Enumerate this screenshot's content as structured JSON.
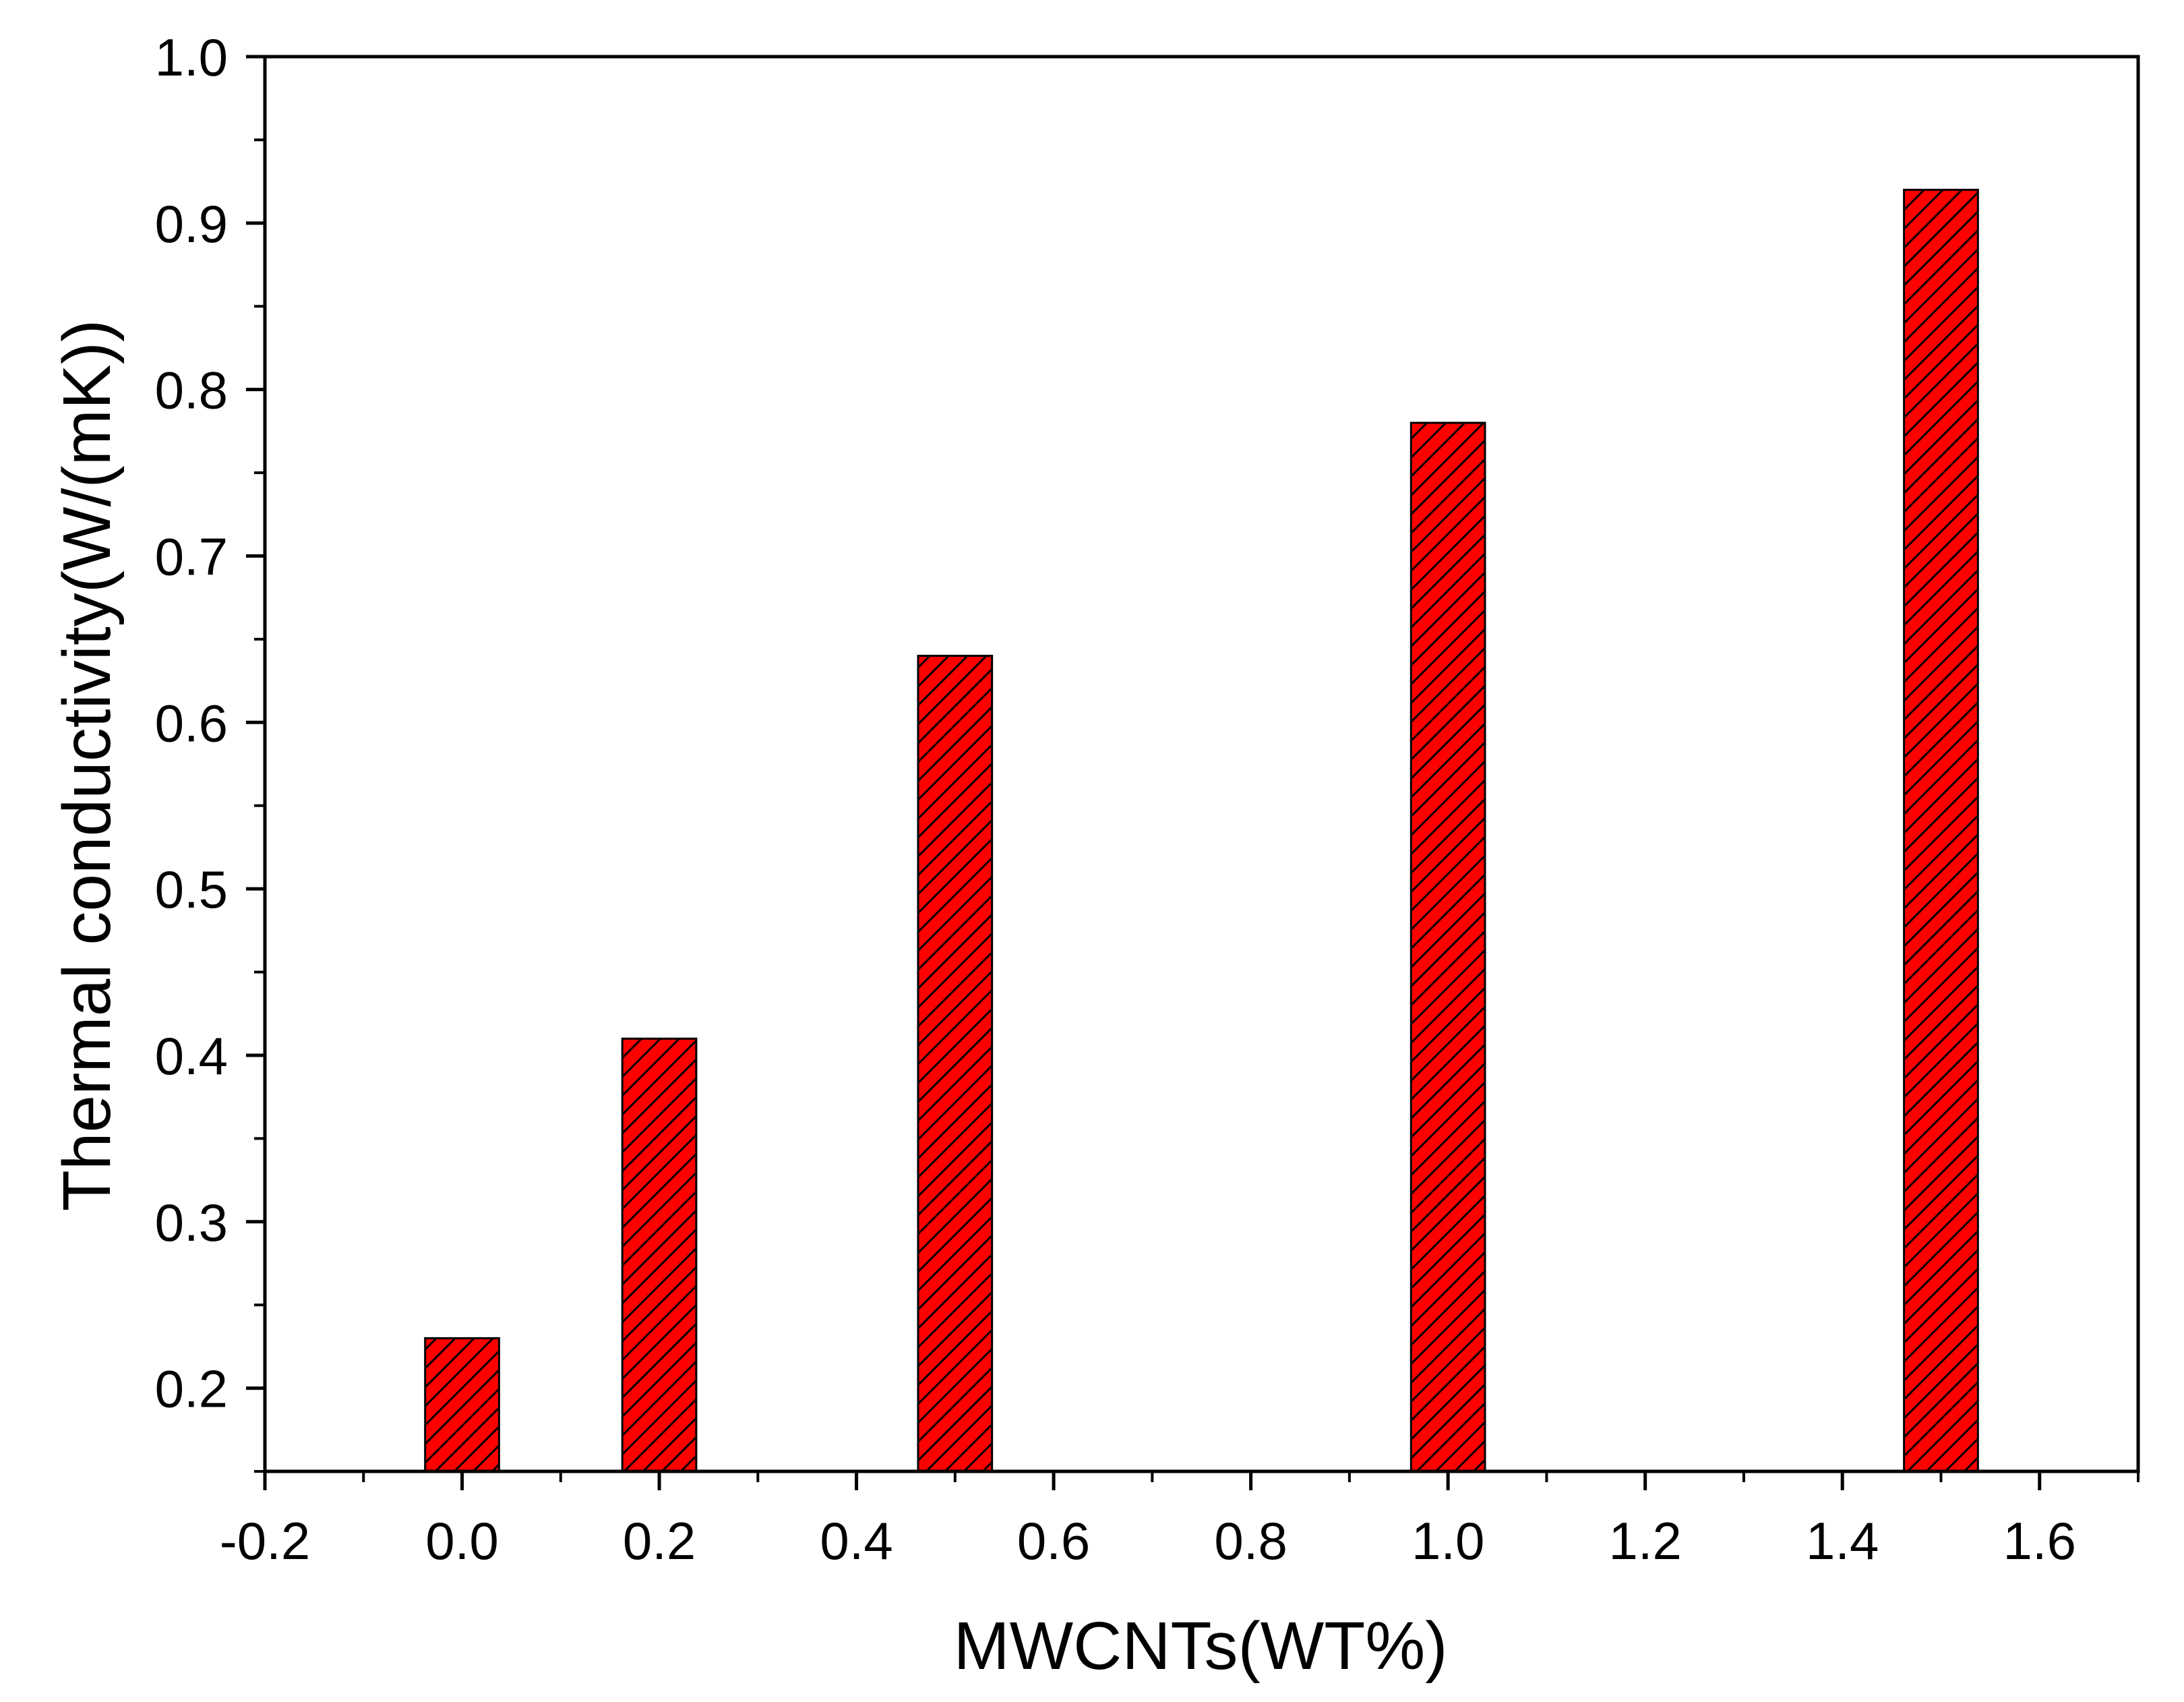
{
  "chart_data": {
    "type": "bar",
    "title": "",
    "xlabel": "MWCNTs(WT%)",
    "ylabel": "Thermal conductivity(W/(mK))",
    "x": [
      0.0,
      0.2,
      0.5,
      1.0,
      1.5
    ],
    "values": [
      0.23,
      0.41,
      0.64,
      0.78,
      0.92
    ],
    "xlim": [
      -0.2,
      1.7
    ],
    "ylim": [
      0.15,
      1.0
    ],
    "bar_width": 0.075,
    "x_ticks": [
      -0.2,
      0.0,
      0.2,
      0.4,
      0.6,
      0.8,
      1.0,
      1.2,
      1.4,
      1.6
    ],
    "x_tick_labels": [
      "-0.2",
      "0.0",
      "0.2",
      "0.4",
      "0.6",
      "0.8",
      "1.0",
      "1.2",
      "1.4",
      "1.6"
    ],
    "x_minor_step": 0.1,
    "y_ticks": [
      0.2,
      0.3,
      0.4,
      0.5,
      0.6,
      0.7,
      0.8,
      0.9,
      1.0
    ],
    "y_tick_labels": [
      "0.2",
      "0.3",
      "0.4",
      "0.5",
      "0.6",
      "0.7",
      "0.8",
      "0.9",
      "1.0"
    ],
    "y_minor_step": 0.05,
    "grid": false,
    "legend": false,
    "colors": {
      "bar_fill": "#ff0000",
      "bar_hatch": "#000000",
      "bar_edge": "#000000",
      "axis": "#000000",
      "background": "#ffffff"
    },
    "bar_pattern": "diagonal-hatch"
  }
}
